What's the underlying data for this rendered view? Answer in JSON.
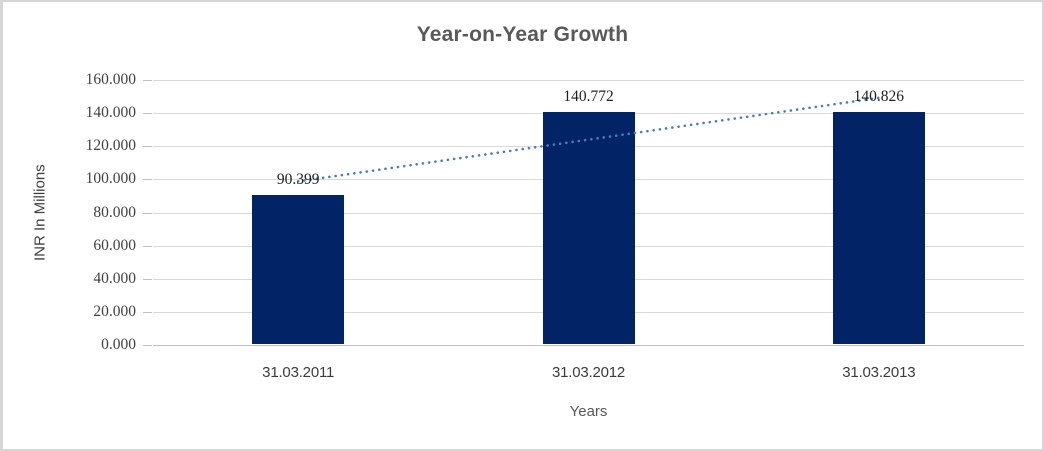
{
  "chart_data": {
    "type": "bar",
    "title": "Year-on-Year Growth",
    "categories": [
      "31.03.2011",
      "31.03.2012",
      "31.03.2013"
    ],
    "values": [
      90.399,
      140.772,
      140.826
    ],
    "value_labels": [
      "90.399",
      "140.772",
      "140.826"
    ],
    "xlabel": "Years",
    "ylabel": "INR In Millions",
    "ylim": [
      0,
      160
    ],
    "ytick_step": 20,
    "ytick_labels": [
      "160.000",
      "140.000",
      "120.000",
      "100.000",
      "80.000",
      "60.000",
      "40.000",
      "20.000",
      "0.000"
    ],
    "grid": true,
    "legend": "none",
    "bar_color": "#022366",
    "trendline": {
      "type": "linear",
      "style": "dotted",
      "color": "#4a7ebb"
    },
    "gridline_color": "#d9d9d9",
    "title_color": "#595959"
  }
}
